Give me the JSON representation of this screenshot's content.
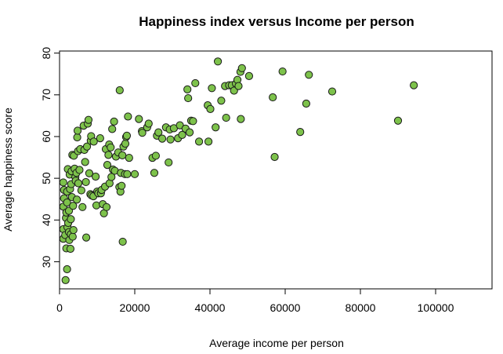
{
  "chart_data": {
    "type": "scatter",
    "title": "Happiness index versus Income per person",
    "xlabel": "Average income per person",
    "ylabel": "Average happiness score",
    "xlim": [
      0,
      115000
    ],
    "ylim": [
      23.5,
      80.5
    ],
    "x_ticks": [
      0,
      20000,
      40000,
      60000,
      80000,
      100000
    ],
    "x_tick_labels": [
      "0",
      "20000",
      "40000",
      "60000",
      "80000",
      "100000"
    ],
    "y_ticks": [
      30,
      40,
      50,
      60,
      70,
      80
    ],
    "y_tick_labels": [
      "30",
      "40",
      "50",
      "60",
      "70",
      "80"
    ],
    "grid": false,
    "legend": "none",
    "marker_fill": "#7dc24b",
    "marker_edge": "#1a1a1a",
    "points": [
      [
        1000,
        37.8
      ],
      [
        1000,
        35.5
      ],
      [
        1000,
        43.2
      ],
      [
        1000,
        49.0
      ],
      [
        1200,
        45.2
      ],
      [
        1200,
        47.2
      ],
      [
        1500,
        36.4
      ],
      [
        1600,
        25.6
      ],
      [
        1700,
        40.5
      ],
      [
        1800,
        41.8
      ],
      [
        1800,
        33.2
      ],
      [
        2000,
        28.2
      ],
      [
        2000,
        46.8
      ],
      [
        2000,
        44.2
      ],
      [
        2100,
        38.3
      ],
      [
        2200,
        52.2
      ],
      [
        2300,
        39.3
      ],
      [
        2500,
        42.2
      ],
      [
        2500,
        37.1
      ],
      [
        2600,
        35.2
      ],
      [
        2700,
        50.9
      ],
      [
        2800,
        47.4
      ],
      [
        2900,
        33.1
      ],
      [
        3000,
        36.6
      ],
      [
        3000,
        40.2
      ],
      [
        3100,
        48.6
      ],
      [
        3200,
        51.7
      ],
      [
        3300,
        45.5
      ],
      [
        3400,
        55.6
      ],
      [
        3500,
        36.0
      ],
      [
        3600,
        43.4
      ],
      [
        3700,
        37.6
      ],
      [
        3800,
        55.4
      ],
      [
        4000,
        52.3
      ],
      [
        4200,
        50.3
      ],
      [
        4300,
        49.4
      ],
      [
        4500,
        51.3
      ],
      [
        4600,
        44.9
      ],
      [
        4700,
        59.8
      ],
      [
        4800,
        61.4
      ],
      [
        4900,
        56.5
      ],
      [
        5000,
        48.8
      ],
      [
        5300,
        52.0
      ],
      [
        5500,
        57.0
      ],
      [
        5800,
        47.1
      ],
      [
        6100,
        43.1
      ],
      [
        6400,
        62.6
      ],
      [
        6600,
        56.8
      ],
      [
        6800,
        53.9
      ],
      [
        7000,
        49.1
      ],
      [
        7100,
        35.8
      ],
      [
        7300,
        57.6
      ],
      [
        7500,
        63.1
      ],
      [
        7700,
        64.0
      ],
      [
        7900,
        51.2
      ],
      [
        8200,
        46.2
      ],
      [
        8300,
        59.0
      ],
      [
        8400,
        60.1
      ],
      [
        8500,
        45.9
      ],
      [
        9000,
        45.7
      ],
      [
        9100,
        58.8
      ],
      [
        9600,
        50.4
      ],
      [
        9800,
        43.5
      ],
      [
        10000,
        46.8
      ],
      [
        10300,
        46.4
      ],
      [
        10800,
        59.6
      ],
      [
        11000,
        46.4
      ],
      [
        11200,
        47.2
      ],
      [
        11500,
        43.8
      ],
      [
        11800,
        41.6
      ],
      [
        12100,
        48.0
      ],
      [
        12300,
        57.0
      ],
      [
        12500,
        43.1
      ],
      [
        12700,
        53.2
      ],
      [
        13000,
        55.6
      ],
      [
        13200,
        58.1
      ],
      [
        13300,
        48.8
      ],
      [
        13600,
        57.4
      ],
      [
        13800,
        50.3
      ],
      [
        14000,
        61.8
      ],
      [
        14200,
        52.1
      ],
      [
        14500,
        63.6
      ],
      [
        14700,
        51.8
      ],
      [
        15000,
        55.2
      ],
      [
        15600,
        56.2
      ],
      [
        15900,
        47.9
      ],
      [
        16000,
        71.1
      ],
      [
        16200,
        46.8
      ],
      [
        16300,
        51.3
      ],
      [
        16500,
        48.2
      ],
      [
        16700,
        55.5
      ],
      [
        16800,
        34.8
      ],
      [
        17000,
        57.6
      ],
      [
        17400,
        51.0
      ],
      [
        17500,
        58.3
      ],
      [
        17700,
        59.9
      ],
      [
        17900,
        60.2
      ],
      [
        18000,
        51.0
      ],
      [
        18200,
        64.8
      ],
      [
        18500,
        54.9
      ],
      [
        20000,
        51.0
      ],
      [
        21100,
        64.2
      ],
      [
        21900,
        61.3
      ],
      [
        22000,
        60.9
      ],
      [
        23300,
        62.2
      ],
      [
        23700,
        63.1
      ],
      [
        24700,
        54.9
      ],
      [
        25200,
        51.3
      ],
      [
        25600,
        55.4
      ],
      [
        25900,
        60.2
      ],
      [
        26300,
        61.0
      ],
      [
        27300,
        59.5
      ],
      [
        28300,
        62.2
      ],
      [
        29000,
        53.8
      ],
      [
        29300,
        61.7
      ],
      [
        29500,
        59.3
      ],
      [
        30400,
        62.0
      ],
      [
        31500,
        59.6
      ],
      [
        32000,
        62.7
      ],
      [
        32600,
        60.4
      ],
      [
        33500,
        61.9
      ],
      [
        34000,
        71.3
      ],
      [
        34200,
        69.2
      ],
      [
        34600,
        61.0
      ],
      [
        35000,
        63.8
      ],
      [
        35500,
        63.7
      ],
      [
        36100,
        72.8
      ],
      [
        37100,
        58.8
      ],
      [
        39400,
        67.5
      ],
      [
        39600,
        58.8
      ],
      [
        40100,
        66.6
      ],
      [
        40500,
        71.6
      ],
      [
        41500,
        62.2
      ],
      [
        42100,
        78.0
      ],
      [
        43000,
        68.6
      ],
      [
        44000,
        72.1
      ],
      [
        44300,
        64.5
      ],
      [
        45100,
        72.3
      ],
      [
        45800,
        72.3
      ],
      [
        46400,
        71.0
      ],
      [
        46900,
        72.7
      ],
      [
        47300,
        73.6
      ],
      [
        47600,
        72.1
      ],
      [
        48100,
        75.5
      ],
      [
        48200,
        64.2
      ],
      [
        48500,
        76.4
      ],
      [
        50400,
        74.5
      ],
      [
        56700,
        69.4
      ],
      [
        57200,
        55.1
      ],
      [
        59300,
        75.6
      ],
      [
        64000,
        61.1
      ],
      [
        65600,
        67.9
      ],
      [
        66300,
        74.8
      ],
      [
        72500,
        70.8
      ],
      [
        90000,
        63.8
      ],
      [
        94200,
        72.3
      ]
    ]
  }
}
